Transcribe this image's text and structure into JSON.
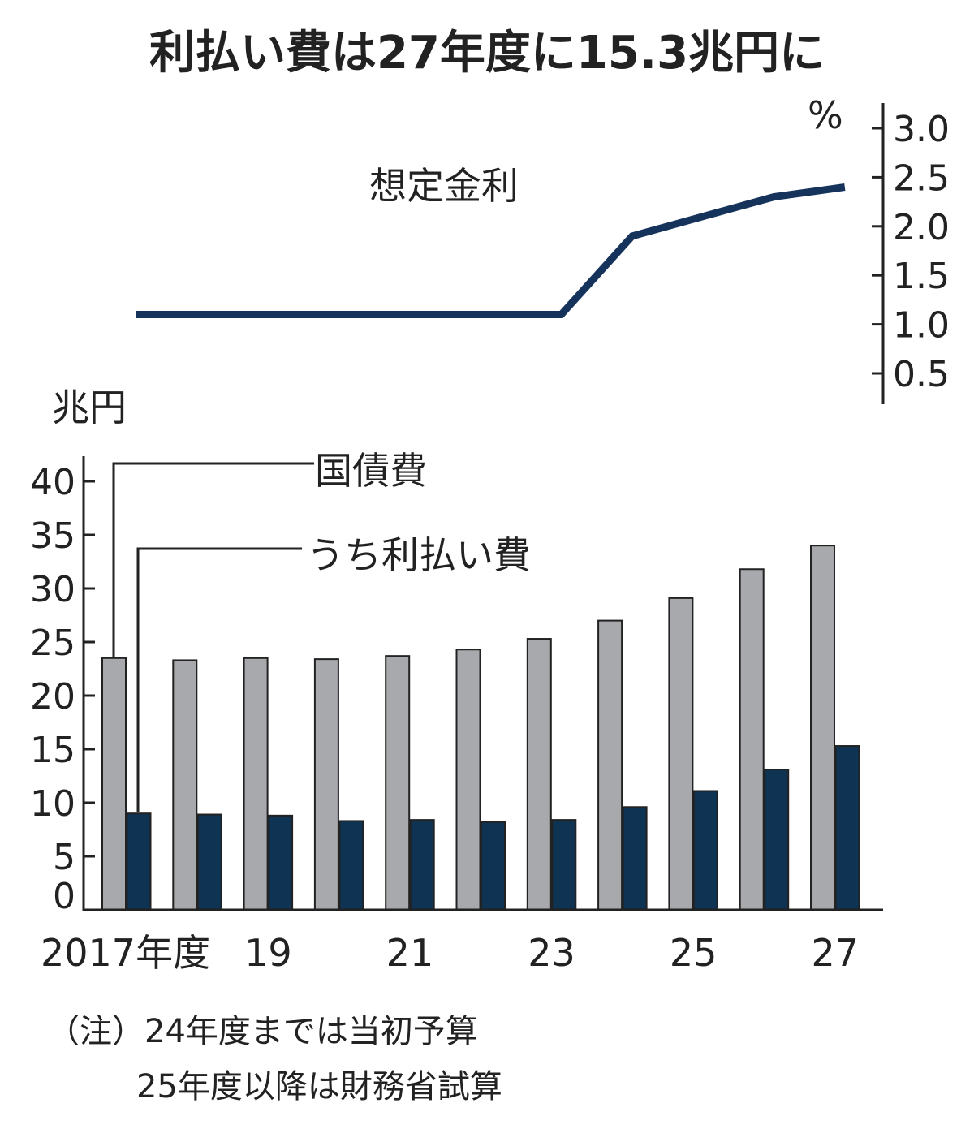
{
  "chart_data": [
    {
      "type": "line",
      "title": "利払い費は27年度に15.3兆円に",
      "ylabel": "%",
      "ylim": [
        0.3,
        3.1
      ],
      "yticks": [
        "3.0",
        "2.5",
        "2.0",
        "1.5",
        "1.0",
        "0.5"
      ],
      "ytick_values": [
        3.0,
        2.5,
        2.0,
        1.5,
        1.0,
        0.5
      ],
      "x": [
        2017,
        2018,
        2019,
        2020,
        2021,
        2022,
        2023,
        2024,
        2025,
        2026,
        2027
      ],
      "series": [
        {
          "name": "想定金利",
          "values": [
            1.1,
            1.1,
            1.1,
            1.1,
            1.1,
            1.1,
            1.1,
            1.9,
            2.1,
            2.3,
            2.4
          ]
        }
      ],
      "color": "#16335c"
    },
    {
      "type": "bar",
      "ylabel": "兆円",
      "ylim": [
        0,
        42
      ],
      "yticks": [
        "40",
        "35",
        "30",
        "25",
        "20",
        "15",
        "10",
        "5",
        "0"
      ],
      "ytick_values": [
        40,
        35,
        30,
        25,
        20,
        15,
        10,
        5,
        0
      ],
      "categories": [
        "2017",
        "2018",
        "2019",
        "2020",
        "2021",
        "2022",
        "2023",
        "2024",
        "2025",
        "2026",
        "2027"
      ],
      "xtick_labels": [
        "2017年度",
        "19",
        "21",
        "23",
        "25",
        "27"
      ],
      "xtick_years": [
        2017,
        2019,
        2021,
        2023,
        2025,
        2027
      ],
      "series": [
        {
          "name": "国債費",
          "color": "#a7a9ac",
          "values": [
            23.5,
            23.3,
            23.5,
            23.4,
            23.7,
            24.3,
            25.3,
            27.0,
            29.1,
            31.8,
            34.0
          ]
        },
        {
          "name": "うち利払い費",
          "color": "#0f3352",
          "values": [
            9.0,
            8.9,
            8.8,
            8.3,
            8.4,
            8.2,
            8.4,
            9.6,
            11.1,
            13.1,
            15.3
          ]
        }
      ]
    }
  ],
  "note": {
    "line1": "（注）24年度までは当初予算",
    "line2": "25年度以降は財務省試算"
  }
}
